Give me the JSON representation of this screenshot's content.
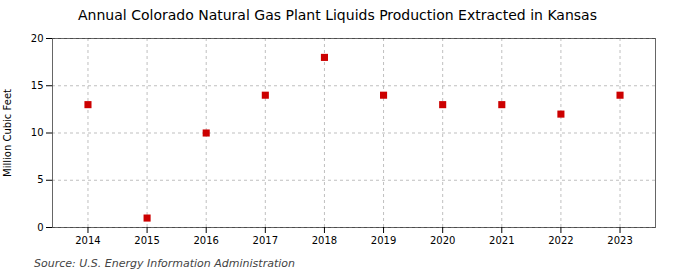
{
  "chart_data": {
    "type": "scatter",
    "title": "Annual Colorado Natural Gas Plant Liquids Production Extracted in Kansas",
    "y_label": "Million Cubic Feet",
    "source": "Source: U.S. Energy Information Administration",
    "x": [
      2014,
      2015,
      2016,
      2017,
      2018,
      2019,
      2020,
      2021,
      2022,
      2023
    ],
    "values": [
      13,
      1,
      10,
      14,
      18,
      14,
      13,
      13,
      12,
      14
    ],
    "color": "#cc0000",
    "marker": "square",
    "xlim": [
      2013.4,
      2023.6
    ],
    "xticks": [
      2014,
      2015,
      2016,
      2017,
      2018,
      2019,
      2020,
      2021,
      2022,
      2023
    ],
    "ylim": [
      0,
      20
    ],
    "yticks": [
      0,
      5,
      10,
      15,
      20
    ],
    "grid": true
  }
}
